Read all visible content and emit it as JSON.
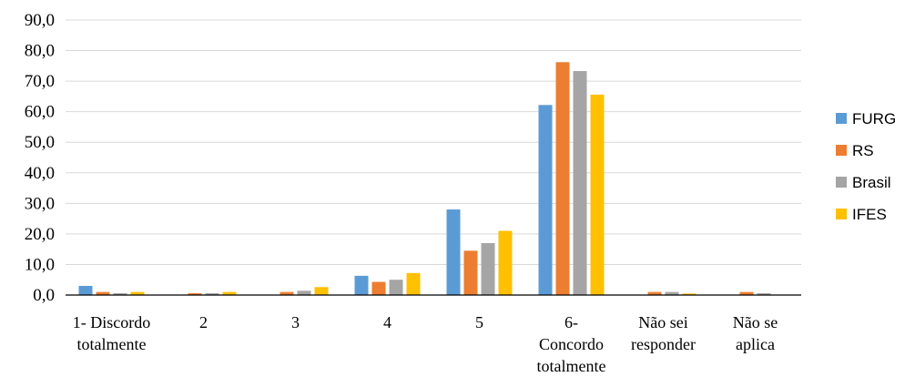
{
  "chart_data": {
    "type": "bar",
    "categories": [
      [
        "1- Discordo",
        "totalmente"
      ],
      [
        "2"
      ],
      [
        "3"
      ],
      [
        "4"
      ],
      [
        "5"
      ],
      [
        "6-",
        "Concordo",
        "totalmente"
      ],
      [
        "Não sei",
        "responder"
      ],
      [
        "Não se",
        "aplica"
      ]
    ],
    "series": [
      {
        "name": "FURG",
        "color": "#5b9bd5",
        "values": [
          3.0,
          0.0,
          0.0,
          6.3,
          28.0,
          62.2,
          0.0,
          0.0
        ]
      },
      {
        "name": "RS",
        "color": "#ed7d31",
        "values": [
          1.0,
          0.6,
          1.0,
          4.3,
          14.5,
          76.2,
          1.0,
          1.0
        ]
      },
      {
        "name": "Brasil",
        "color": "#a5a5a5",
        "values": [
          0.6,
          0.6,
          1.4,
          5.0,
          17.0,
          73.3,
          1.0,
          0.6
        ]
      },
      {
        "name": "IFES",
        "color": "#ffc000",
        "values": [
          1.0,
          1.0,
          2.6,
          7.2,
          21.0,
          65.6,
          0.5,
          0.0
        ]
      }
    ],
    "ylim": [
      0,
      90
    ],
    "yticks": [
      "0,0",
      "10,0",
      "20,0",
      "30,0",
      "40,0",
      "50,0",
      "60,0",
      "70,0",
      "80,0",
      "90,0"
    ],
    "grid": true,
    "legend": "right"
  }
}
